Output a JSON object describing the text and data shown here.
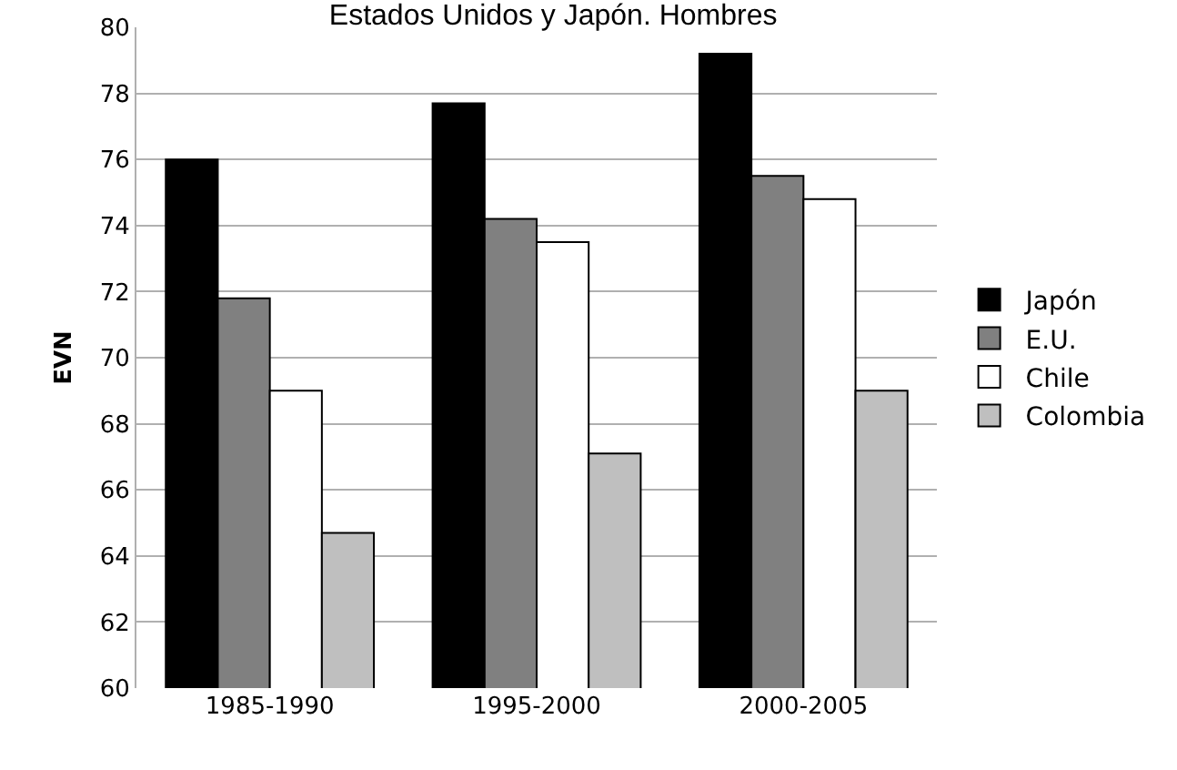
{
  "chart_data": {
    "type": "bar",
    "title": "Estados Unidos y Japón. Hombres",
    "ylabel": "EVN",
    "categories": [
      "1985-1990",
      "1995-2000",
      "2000-2005"
    ],
    "series": [
      {
        "name": "Japón",
        "color": "#000000",
        "values": [
          76.0,
          77.7,
          79.2
        ]
      },
      {
        "name": "E.U.",
        "color": "#808080",
        "values": [
          71.8,
          74.2,
          75.5
        ]
      },
      {
        "name": "Chile",
        "color": "#ffffff",
        "values": [
          69.0,
          73.5,
          74.8
        ]
      },
      {
        "name": "Colombia",
        "color": "#bfbfbf",
        "values": [
          64.7,
          67.1,
          69.0
        ]
      }
    ],
    "ylim": [
      60,
      80
    ],
    "yticks": [
      60,
      62,
      64,
      66,
      68,
      70,
      72,
      74,
      76,
      78,
      80
    ],
    "grid": "y",
    "legend": "right"
  }
}
